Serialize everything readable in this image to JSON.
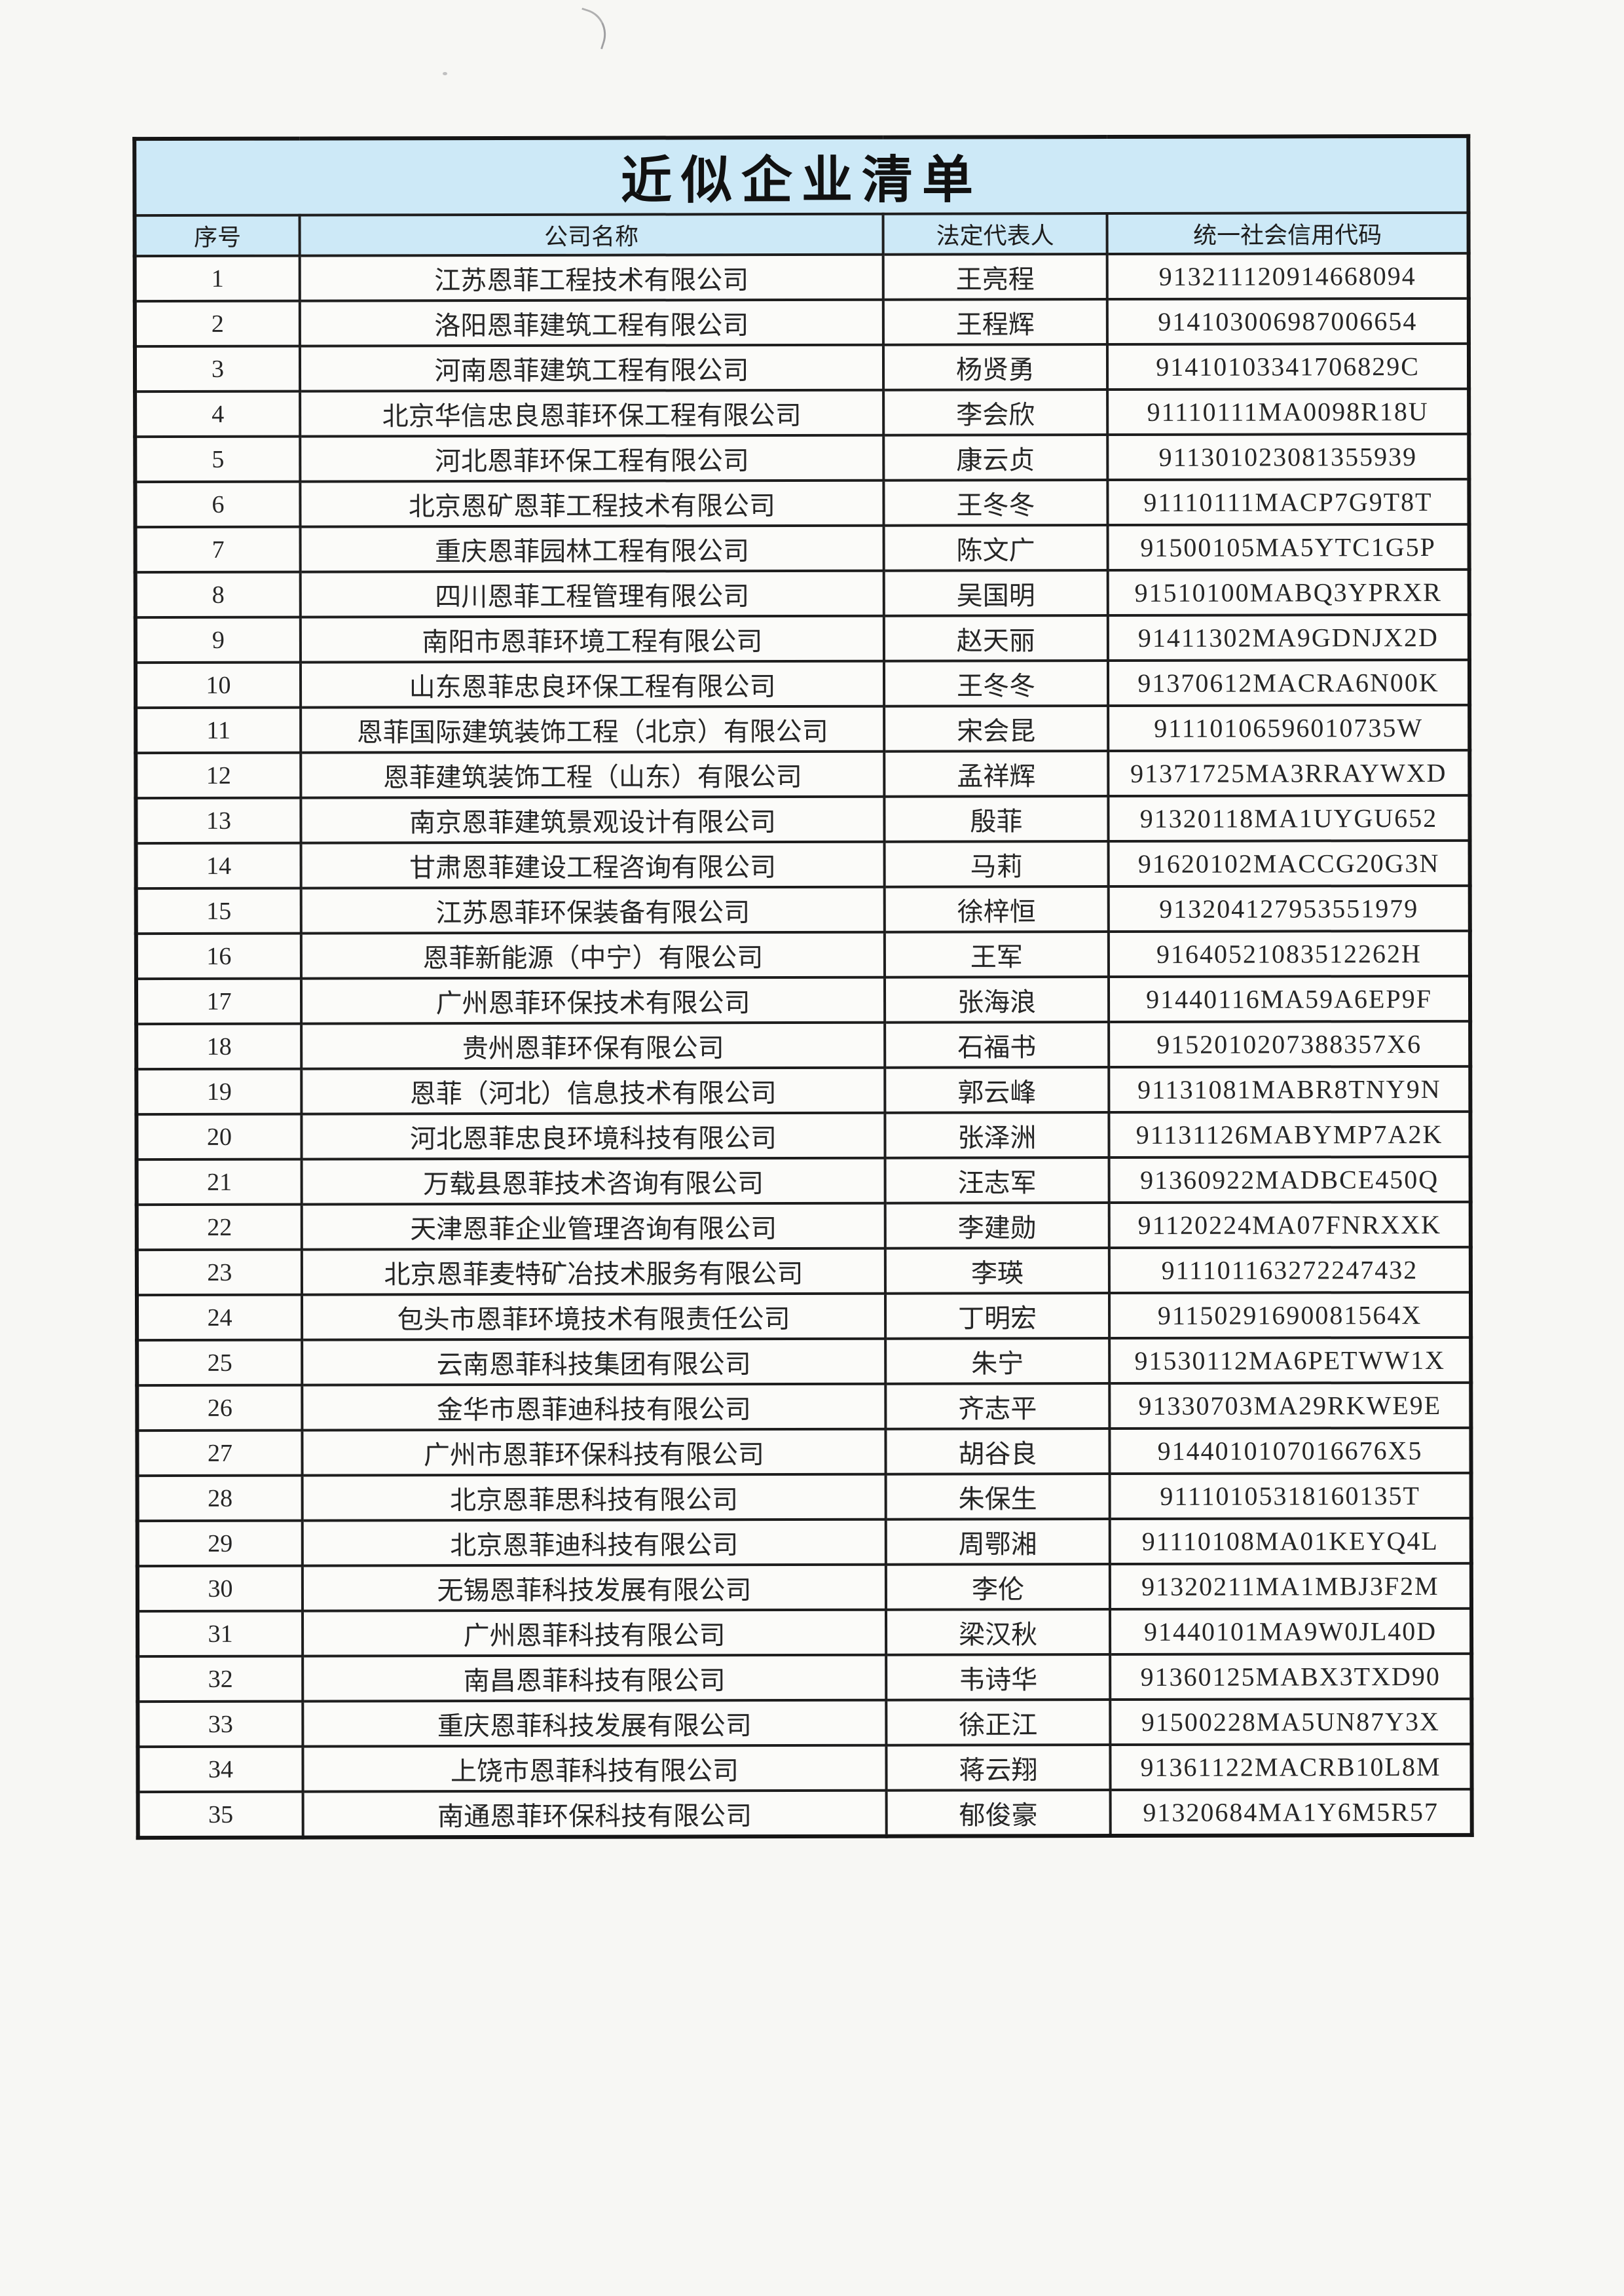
{
  "document": {
    "title": "近似企业清单"
  },
  "table": {
    "headers": [
      "序号",
      "公司名称",
      "法定代表人",
      "统一社会信用代码"
    ],
    "rows": [
      {
        "no": "1",
        "company": "江苏恩菲工程技术有限公司",
        "rep": "王亮程",
        "code": "913211120914668094"
      },
      {
        "no": "2",
        "company": "洛阳恩菲建筑工程有限公司",
        "rep": "王程辉",
        "code": "914103006987006654"
      },
      {
        "no": "3",
        "company": "河南恩菲建筑工程有限公司",
        "rep": "杨贤勇",
        "code": "91410103341706829C"
      },
      {
        "no": "4",
        "company": "北京华信忠良恩菲环保工程有限公司",
        "rep": "李会欣",
        "code": "91110111MA0098R18U"
      },
      {
        "no": "5",
        "company": "河北恩菲环保工程有限公司",
        "rep": "康云贞",
        "code": "911301023081355939"
      },
      {
        "no": "6",
        "company": "北京恩矿恩菲工程技术有限公司",
        "rep": "王冬冬",
        "code": "91110111MACP7G9T8T"
      },
      {
        "no": "7",
        "company": "重庆恩菲园林工程有限公司",
        "rep": "陈文广",
        "code": "91500105MA5YTC1G5P"
      },
      {
        "no": "8",
        "company": "四川恩菲工程管理有限公司",
        "rep": "吴国明",
        "code": "91510100MABQ3YPRXR"
      },
      {
        "no": "9",
        "company": "南阳市恩菲环境工程有限公司",
        "rep": "赵天丽",
        "code": "91411302MA9GDNJX2D"
      },
      {
        "no": "10",
        "company": "山东恩菲忠良环保工程有限公司",
        "rep": "王冬冬",
        "code": "91370612MACRA6N00K"
      },
      {
        "no": "11",
        "company": "恩菲国际建筑装饰工程（北京）有限公司",
        "rep": "宋会昆",
        "code": "91110106596010735W"
      },
      {
        "no": "12",
        "company": "恩菲建筑装饰工程（山东）有限公司",
        "rep": "孟祥辉",
        "code": "91371725MA3RRAYWXD"
      },
      {
        "no": "13",
        "company": "南京恩菲建筑景观设计有限公司",
        "rep": "殷菲",
        "code": "91320118MA1UYGU652"
      },
      {
        "no": "14",
        "company": "甘肃恩菲建设工程咨询有限公司",
        "rep": "马莉",
        "code": "91620102MACCG20G3N"
      },
      {
        "no": "15",
        "company": "江苏恩菲环保装备有限公司",
        "rep": "徐梓恒",
        "code": "913204127953551979"
      },
      {
        "no": "16",
        "company": "恩菲新能源（中宁）有限公司",
        "rep": "王军",
        "code": "91640521083512262H"
      },
      {
        "no": "17",
        "company": "广州恩菲环保技术有限公司",
        "rep": "张海浪",
        "code": "91440116MA59A6EP9F"
      },
      {
        "no": "18",
        "company": "贵州恩菲环保有限公司",
        "rep": "石福书",
        "code": "9152010207388357X6"
      },
      {
        "no": "19",
        "company": "恩菲（河北）信息技术有限公司",
        "rep": "郭云峰",
        "code": "91131081MABR8TNY9N"
      },
      {
        "no": "20",
        "company": "河北恩菲忠良环境科技有限公司",
        "rep": "张泽洲",
        "code": "91131126MABYMP7A2K"
      },
      {
        "no": "21",
        "company": "万载县恩菲技术咨询有限公司",
        "rep": "汪志军",
        "code": "91360922MADBCE450Q"
      },
      {
        "no": "22",
        "company": "天津恩菲企业管理咨询有限公司",
        "rep": "李建勋",
        "code": "91120224MA07FNRXXK"
      },
      {
        "no": "23",
        "company": "北京恩菲麦特矿冶技术服务有限公司",
        "rep": "李瑛",
        "code": "911101163272247432"
      },
      {
        "no": "24",
        "company": "包头市恩菲环境技术有限责任公司",
        "rep": "丁明宏",
        "code": "91150291690081564X"
      },
      {
        "no": "25",
        "company": "云南恩菲科技集团有限公司",
        "rep": "朱宁",
        "code": "91530112MA6PETWW1X"
      },
      {
        "no": "26",
        "company": "金华市恩菲迪科技有限公司",
        "rep": "齐志平",
        "code": "91330703MA29RKWE9E"
      },
      {
        "no": "27",
        "company": "广州市恩菲环保科技有限公司",
        "rep": "胡谷良",
        "code": "9144010107016676X5"
      },
      {
        "no": "28",
        "company": "北京恩菲思科技有限公司",
        "rep": "朱保生",
        "code": "91110105318160135T"
      },
      {
        "no": "29",
        "company": "北京恩菲迪科技有限公司",
        "rep": "周鄂湘",
        "code": "91110108MA01KEYQ4L"
      },
      {
        "no": "30",
        "company": "无锡恩菲科技发展有限公司",
        "rep": "李伦",
        "code": "91320211MA1MBJ3F2M"
      },
      {
        "no": "31",
        "company": "广州恩菲科技有限公司",
        "rep": "梁汉秋",
        "code": "91440101MA9W0JL40D"
      },
      {
        "no": "32",
        "company": "南昌恩菲科技有限公司",
        "rep": "韦诗华",
        "code": "91360125MABX3TXD90"
      },
      {
        "no": "33",
        "company": "重庆恩菲科技发展有限公司",
        "rep": "徐正江",
        "code": "91500228MA5UN87Y3X"
      },
      {
        "no": "34",
        "company": "上饶市恩菲科技有限公司",
        "rep": "蒋云翔",
        "code": "91361122MACRB10L8M"
      },
      {
        "no": "35",
        "company": "南通恩菲环保科技有限公司",
        "rep": "郁俊豪",
        "code": "91320684MA1Y6M5R57"
      }
    ]
  },
  "colors": {
    "header_background": "#cde9f7",
    "border": "#1e1e1e",
    "paper": "#f7f7f4",
    "text": "#262626"
  }
}
